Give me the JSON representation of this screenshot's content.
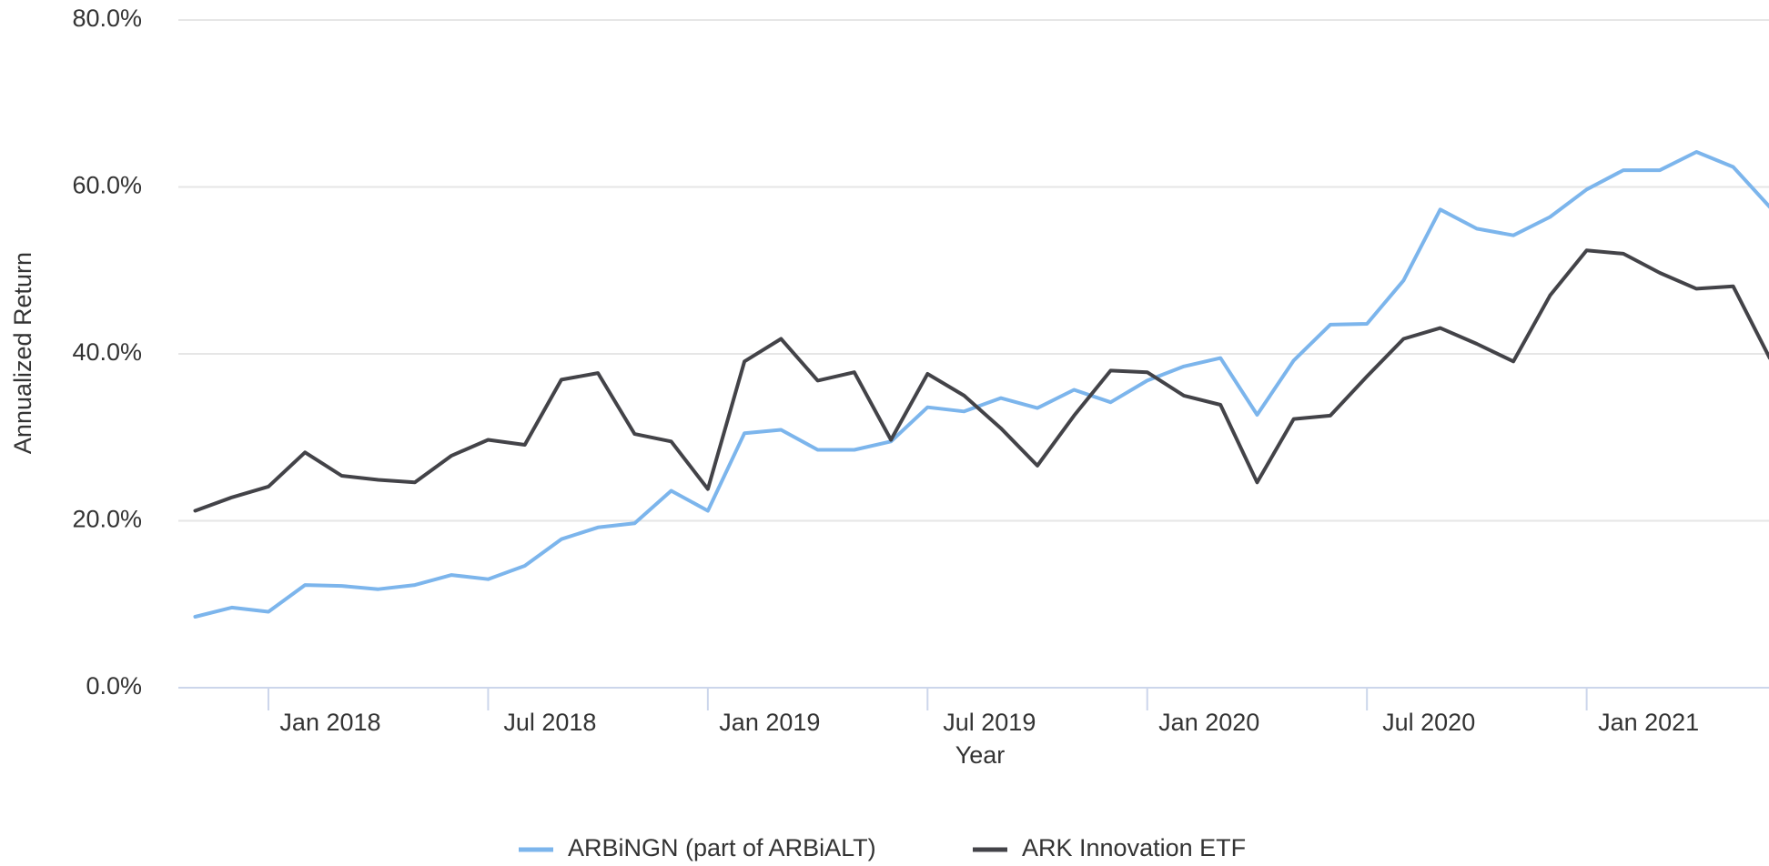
{
  "chart_data": {
    "type": "line",
    "x_label": "Year",
    "y_label": "Annualized Return",
    "categories": [
      null,
      null,
      "Jan 2018",
      null,
      null,
      null,
      null,
      null,
      "Jul 2018",
      null,
      null,
      null,
      null,
      null,
      "Jan 2019",
      null,
      null,
      null,
      null,
      null,
      "Jul 2019",
      null,
      null,
      null,
      null,
      null,
      "Jan 2020",
      null,
      null,
      null,
      null,
      null,
      "Jul 2020",
      null,
      null,
      null,
      null,
      null,
      "Jan 2021",
      null,
      null,
      null,
      null,
      null
    ],
    "series": [
      {
        "name": "ARBiNGN (part of ARBiALT)",
        "color": "#7cb5ec",
        "values": [
          8.5,
          9.6,
          9.1,
          12.3,
          12.2,
          11.8,
          12.3,
          13.5,
          13.0,
          14.6,
          17.8,
          19.2,
          19.7,
          23.6,
          21.2,
          30.5,
          30.9,
          28.5,
          28.5,
          29.5,
          33.6,
          33.1,
          34.7,
          33.5,
          35.7,
          34.2,
          36.8,
          38.5,
          39.5,
          32.7,
          39.2,
          43.5,
          43.6,
          48.8,
          57.3,
          55.0,
          54.2,
          56.4,
          59.7,
          62.0,
          62.0,
          64.2,
          62.4,
          57.6
        ]
      },
      {
        "name": "ARK Innovation ETF",
        "color": "#434348",
        "values": [
          21.2,
          22.8,
          24.1,
          28.2,
          25.4,
          24.9,
          24.6,
          27.8,
          29.7,
          29.1,
          36.9,
          37.7,
          30.4,
          29.5,
          23.8,
          39.1,
          41.8,
          36.8,
          37.8,
          29.7,
          37.6,
          35.0,
          31.1,
          26.6,
          32.6,
          38.0,
          37.8,
          35.0,
          33.9,
          24.6,
          32.2,
          32.6,
          37.3,
          41.8,
          43.1,
          41.2,
          39.1,
          47.0,
          52.4,
          52.0,
          49.7,
          47.8,
          48.1,
          39.5
        ]
      }
    ],
    "ylim": [
      0,
      80
    ],
    "yticks": [
      {
        "value": 0,
        "label": "0.0%"
      },
      {
        "value": 20,
        "label": "20.0%"
      },
      {
        "value": 40,
        "label": "40.0%"
      },
      {
        "value": 60,
        "label": "60.0%"
      },
      {
        "value": 80,
        "label": "80.0%"
      }
    ],
    "grid": true,
    "legend": "bottom"
  }
}
